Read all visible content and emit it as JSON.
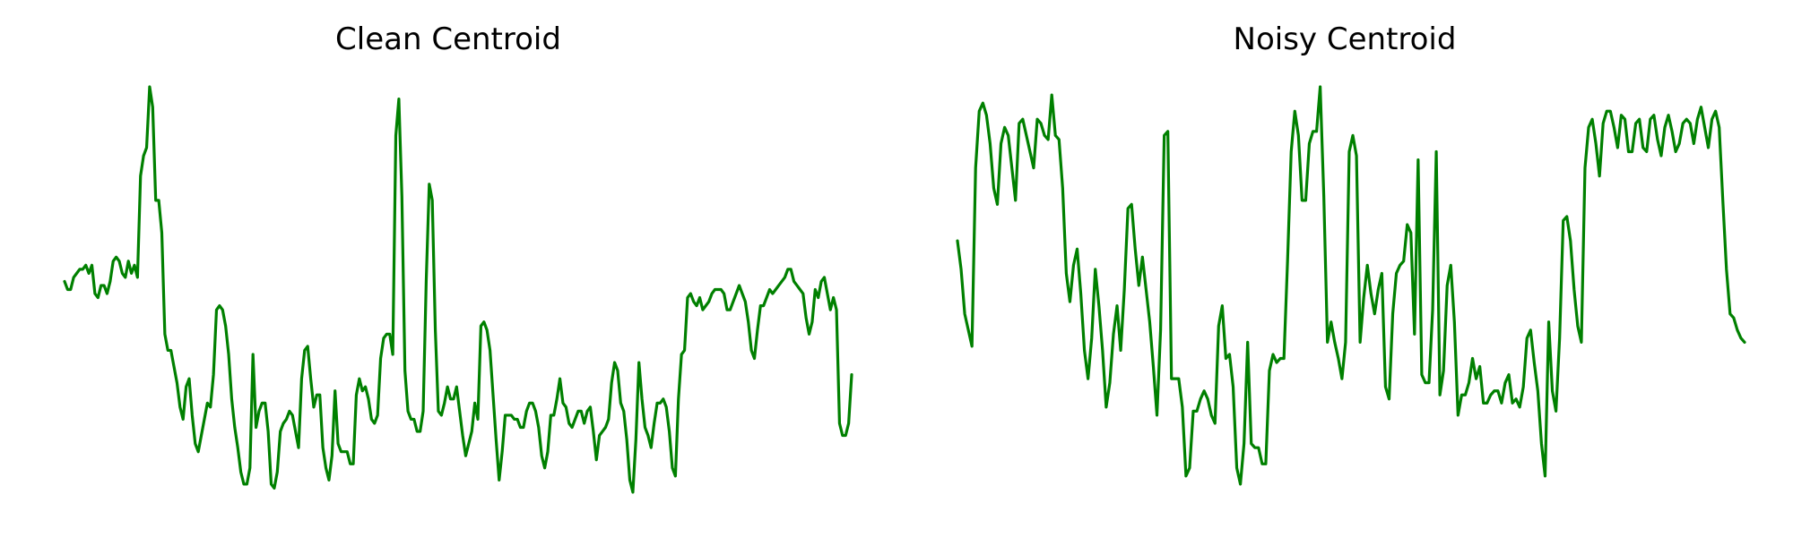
{
  "colors": {
    "line": "#008000",
    "background": "#ffffff",
    "title": "#000000"
  },
  "chart_data": [
    {
      "type": "line",
      "title": "Clean Centroid",
      "xlabel": "",
      "ylabel": "",
      "axes_visible": false,
      "grid": false,
      "ylim": [
        0,
        1
      ],
      "series": [
        {
          "color": "#008000",
          "values": [
            0.52,
            0.5,
            0.5,
            0.53,
            0.54,
            0.55,
            0.55,
            0.56,
            0.54,
            0.56,
            0.49,
            0.48,
            0.51,
            0.51,
            0.49,
            0.52,
            0.57,
            0.58,
            0.57,
            0.54,
            0.53,
            0.57,
            0.54,
            0.56,
            0.53,
            0.78,
            0.83,
            0.85,
            1.0,
            0.95,
            0.72,
            0.72,
            0.64,
            0.39,
            0.35,
            0.35,
            0.31,
            0.27,
            0.21,
            0.18,
            0.26,
            0.28,
            0.19,
            0.12,
            0.1,
            0.14,
            0.18,
            0.22,
            0.21,
            0.29,
            0.45,
            0.46,
            0.45,
            0.41,
            0.34,
            0.23,
            0.16,
            0.11,
            0.05,
            0.02,
            0.02,
            0.06,
            0.34,
            0.16,
            0.2,
            0.22,
            0.22,
            0.15,
            0.02,
            0.01,
            0.05,
            0.15,
            0.17,
            0.18,
            0.2,
            0.19,
            0.15,
            0.11,
            0.28,
            0.35,
            0.36,
            0.28,
            0.21,
            0.24,
            0.24,
            0.11,
            0.06,
            0.03,
            0.09,
            0.25,
            0.12,
            0.1,
            0.1,
            0.1,
            0.07,
            0.07,
            0.24,
            0.28,
            0.25,
            0.26,
            0.23,
            0.18,
            0.17,
            0.19,
            0.33,
            0.38,
            0.39,
            0.39,
            0.34,
            0.88,
            0.97,
            0.73,
            0.3,
            0.2,
            0.18,
            0.18,
            0.15,
            0.15,
            0.2,
            0.52,
            0.76,
            0.72,
            0.4,
            0.2,
            0.19,
            0.22,
            0.26,
            0.23,
            0.23,
            0.26,
            0.2,
            0.14,
            0.09,
            0.12,
            0.15,
            0.22,
            0.18,
            0.41,
            0.42,
            0.4,
            0.35,
            0.24,
            0.13,
            0.03,
            0.1,
            0.19,
            0.19,
            0.19,
            0.18,
            0.18,
            0.16,
            0.16,
            0.2,
            0.22,
            0.22,
            0.2,
            0.16,
            0.09,
            0.06,
            0.1,
            0.19,
            0.19,
            0.23,
            0.28,
            0.22,
            0.21,
            0.17,
            0.16,
            0.18,
            0.2,
            0.2,
            0.17,
            0.2,
            0.21,
            0.15,
            0.08,
            0.14,
            0.15,
            0.16,
            0.18,
            0.27,
            0.32,
            0.3,
            0.22,
            0.2,
            0.13,
            0.03,
            0.0,
            0.13,
            0.32,
            0.23,
            0.16,
            0.14,
            0.11,
            0.17,
            0.22,
            0.22,
            0.23,
            0.21,
            0.15,
            0.06,
            0.04,
            0.23,
            0.34,
            0.35,
            0.48,
            0.49,
            0.47,
            0.46,
            0.48,
            0.45,
            0.46,
            0.47,
            0.49,
            0.5,
            0.5,
            0.5,
            0.49,
            0.45,
            0.45,
            0.47,
            0.49,
            0.51,
            0.49,
            0.47,
            0.42,
            0.35,
            0.33,
            0.4,
            0.46,
            0.46,
            0.48,
            0.5,
            0.49,
            0.5,
            0.51,
            0.52,
            0.53,
            0.55,
            0.55,
            0.52,
            0.51,
            0.5,
            0.49,
            0.43,
            0.39,
            0.42,
            0.5,
            0.48,
            0.52,
            0.53,
            0.49,
            0.45,
            0.48,
            0.45,
            0.17,
            0.14,
            0.14,
            0.17,
            0.29
          ]
        }
      ]
    },
    {
      "type": "line",
      "title": "Noisy Centroid",
      "xlabel": "",
      "ylabel": "",
      "axes_visible": false,
      "grid": false,
      "ylim": [
        0,
        1
      ],
      "series": [
        {
          "color": "#008000",
          "values": [
            0.62,
            0.55,
            0.44,
            0.4,
            0.36,
            0.8,
            0.94,
            0.96,
            0.93,
            0.86,
            0.75,
            0.71,
            0.86,
            0.9,
            0.88,
            0.8,
            0.72,
            0.91,
            0.92,
            0.88,
            0.84,
            0.8,
            0.92,
            0.91,
            0.88,
            0.87,
            0.98,
            0.88,
            0.87,
            0.75,
            0.54,
            0.47,
            0.56,
            0.6,
            0.49,
            0.35,
            0.28,
            0.38,
            0.55,
            0.46,
            0.35,
            0.21,
            0.27,
            0.39,
            0.46,
            0.35,
            0.5,
            0.7,
            0.71,
            0.6,
            0.51,
            0.58,
            0.5,
            0.42,
            0.31,
            0.19,
            0.4,
            0.88,
            0.89,
            0.28,
            0.28,
            0.28,
            0.21,
            0.04,
            0.06,
            0.2,
            0.2,
            0.23,
            0.25,
            0.23,
            0.19,
            0.17,
            0.41,
            0.46,
            0.33,
            0.34,
            0.26,
            0.06,
            0.02,
            0.12,
            0.37,
            0.12,
            0.11,
            0.11,
            0.07,
            0.07,
            0.3,
            0.34,
            0.32,
            0.33,
            0.33,
            0.57,
            0.84,
            0.94,
            0.88,
            0.72,
            0.72,
            0.86,
            0.89,
            0.89,
            1.0,
            0.73,
            0.37,
            0.42,
            0.37,
            0.33,
            0.28,
            0.37,
            0.84,
            0.88,
            0.83,
            0.37,
            0.48,
            0.56,
            0.49,
            0.44,
            0.5,
            0.54,
            0.26,
            0.23,
            0.44,
            0.54,
            0.56,
            0.57,
            0.66,
            0.64,
            0.39,
            0.82,
            0.29,
            0.27,
            0.27,
            0.45,
            0.84,
            0.24,
            0.3,
            0.51,
            0.56,
            0.42,
            0.19,
            0.24,
            0.24,
            0.27,
            0.33,
            0.28,
            0.31,
            0.22,
            0.22,
            0.24,
            0.25,
            0.25,
            0.22,
            0.27,
            0.29,
            0.22,
            0.23,
            0.21,
            0.26,
            0.38,
            0.4,
            0.32,
            0.25,
            0.12,
            0.04,
            0.42,
            0.25,
            0.2,
            0.38,
            0.67,
            0.68,
            0.62,
            0.5,
            0.41,
            0.37,
            0.8,
            0.9,
            0.92,
            0.86,
            0.78,
            0.91,
            0.94,
            0.94,
            0.9,
            0.85,
            0.93,
            0.92,
            0.84,
            0.84,
            0.91,
            0.92,
            0.85,
            0.84,
            0.92,
            0.93,
            0.87,
            0.83,
            0.9,
            0.93,
            0.89,
            0.84,
            0.86,
            0.91,
            0.92,
            0.91,
            0.86,
            0.92,
            0.95,
            0.9,
            0.85,
            0.92,
            0.94,
            0.9,
            0.72,
            0.55,
            0.44,
            0.43,
            0.4,
            0.38,
            0.37
          ]
        }
      ]
    }
  ]
}
